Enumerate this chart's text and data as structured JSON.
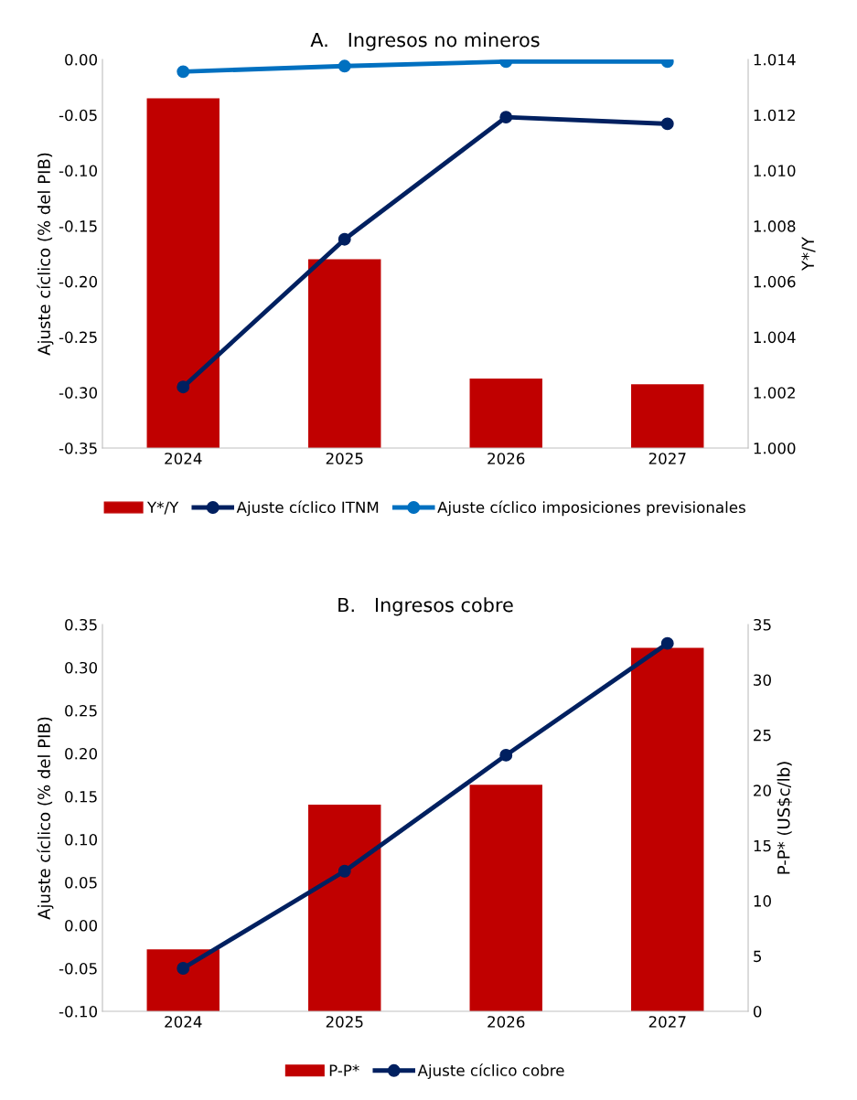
{
  "chart_data": [
    {
      "type": "bar",
      "title": "A.   Ingresos no mineros",
      "ylabel": "Ajuste cíclico (% del PIB)",
      "y2label": "Y*/Y",
      "categories": [
        "2024",
        "2025",
        "2026",
        "2027"
      ],
      "series": [
        {
          "name": "Y*/Y",
          "axis": "y2",
          "color": "#c00000",
          "values": [
            1.0126,
            1.0068,
            1.0025,
            1.0023
          ]
        },
        {
          "name": "Ajuste cíclico ITNM",
          "type": "line",
          "color": "#002060",
          "values": [
            -0.295,
            -0.162,
            -0.052,
            -0.058
          ]
        },
        {
          "name": "Ajuste cíclico imposiciones previsionales",
          "type": "line",
          "color": "#0070c0",
          "values": [
            -0.011,
            -0.006,
            -0.002,
            -0.002
          ]
        }
      ],
      "ylim": [
        -0.35,
        0.0
      ],
      "yticks": [
        {
          "value": -0.35,
          "label": "-0.35"
        },
        {
          "value": -0.3,
          "label": "-0.30"
        },
        {
          "value": -0.25,
          "label": "-0.25"
        },
        {
          "value": -0.2,
          "label": "-0.20"
        },
        {
          "value": -0.15,
          "label": "-0.15"
        },
        {
          "value": -0.1,
          "label": "-0.10"
        },
        {
          "value": -0.05,
          "label": "-0.05"
        },
        {
          "value": 0.0,
          "label": "0.00"
        }
      ],
      "y2lim": [
        1.0,
        1.014
      ],
      "y2ticks": [
        {
          "value": 1.0,
          "label": "1.000"
        },
        {
          "value": 1.002,
          "label": "1.002"
        },
        {
          "value": 1.004,
          "label": "1.004"
        },
        {
          "value": 1.006,
          "label": "1.006"
        },
        {
          "value": 1.008,
          "label": "1.008"
        },
        {
          "value": 1.01,
          "label": "1.010"
        },
        {
          "value": 1.012,
          "label": "1.012"
        },
        {
          "value": 1.014,
          "label": "1.014"
        }
      ],
      "marker": "circle",
      "legend": "bottom",
      "grid": false
    },
    {
      "type": "bar",
      "title": "B.   Ingresos cobre",
      "ylabel": "Ajuste cíclico (% del PIB)",
      "y2label": "P-P* (US$c/lb)",
      "categories": [
        "2024",
        "2025",
        "2026",
        "2027"
      ],
      "series": [
        {
          "name": "P-P*",
          "axis": "y2",
          "color": "#c00000",
          "values": [
            5.6,
            18.7,
            20.5,
            32.9
          ]
        },
        {
          "name": "Ajuste cíclico cobre",
          "type": "line",
          "color": "#002060",
          "values": [
            -0.05,
            0.063,
            0.198,
            0.328
          ]
        }
      ],
      "ylim": [
        -0.1,
        0.35
      ],
      "yticks": [
        {
          "value": -0.1,
          "label": "-0.10"
        },
        {
          "value": -0.05,
          "label": "-0.05"
        },
        {
          "value": 0.0,
          "label": "0.00"
        },
        {
          "value": 0.05,
          "label": "0.05"
        },
        {
          "value": 0.1,
          "label": "0.10"
        },
        {
          "value": 0.15,
          "label": "0.15"
        },
        {
          "value": 0.2,
          "label": "0.20"
        },
        {
          "value": 0.25,
          "label": "0.25"
        },
        {
          "value": 0.3,
          "label": "0.30"
        },
        {
          "value": 0.35,
          "label": "0.35"
        }
      ],
      "y2lim": [
        0,
        35
      ],
      "y2ticks": [
        0,
        5,
        10,
        15,
        20,
        25,
        30,
        35
      ],
      "marker": "circle",
      "legend": "bottom",
      "grid": false
    }
  ]
}
